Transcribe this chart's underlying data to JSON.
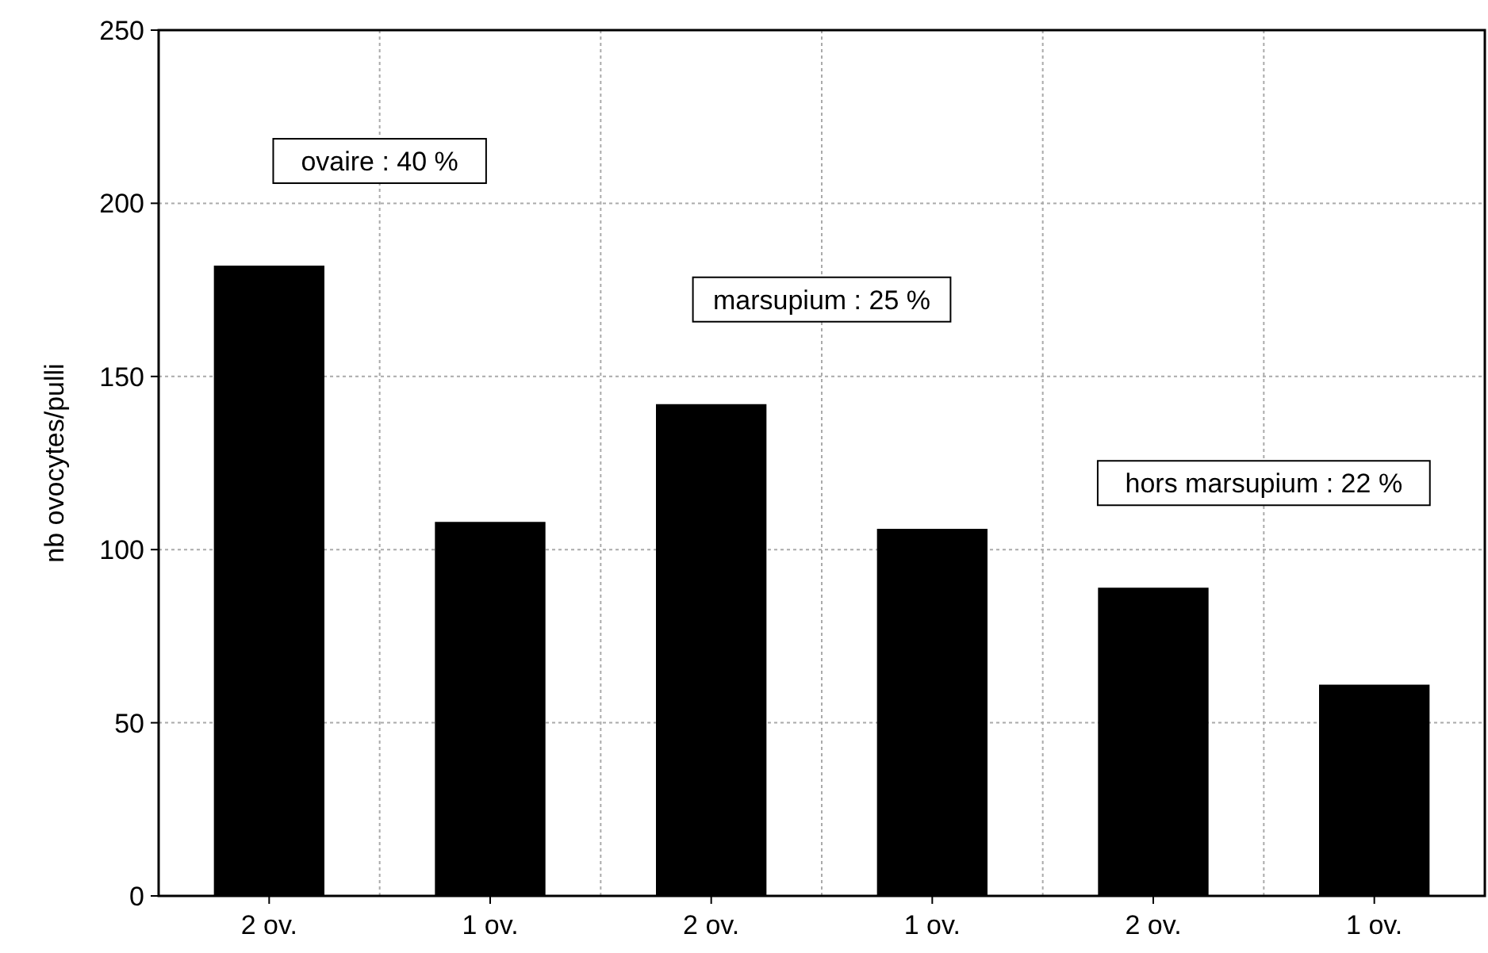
{
  "chart_data": {
    "type": "bar",
    "ylabel": "nb ovocytes/pulli",
    "categories": [
      "2 ov.",
      "1 ov.",
      "2 ov.",
      "1 ov.",
      "2 ov.",
      "1 ov."
    ],
    "values": [
      182,
      108,
      142,
      106,
      89,
      61
    ],
    "color": "#000000",
    "ylim": [
      0,
      250
    ],
    "yticks": [
      0,
      50,
      100,
      150,
      200,
      250
    ],
    "grid": true,
    "annotations": [
      "ovaire : 40 %",
      "marsupium : 25 %",
      "hors marsupium : 22 %"
    ]
  }
}
